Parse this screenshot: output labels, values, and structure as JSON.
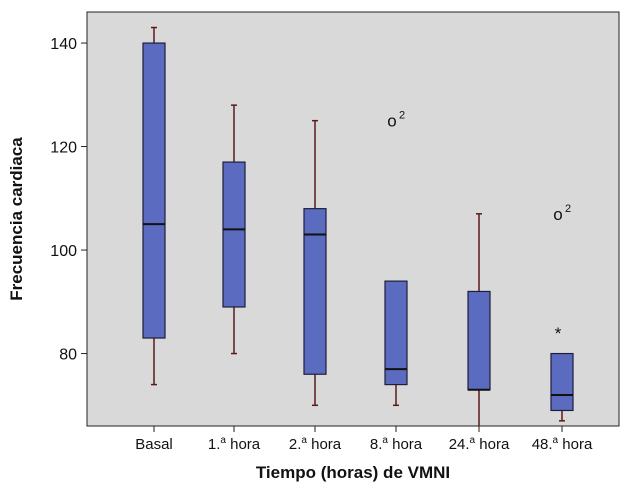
{
  "chart_data": {
    "type": "boxplot",
    "xlabel": "Tiempo (horas) de VMNI",
    "ylabel": "Frecuencia cardiaca",
    "ylim": [
      66,
      146
    ],
    "yticks": [
      80,
      100,
      120,
      140
    ],
    "grid": false,
    "colors": {
      "plot_bg": "#d9d9d9",
      "box_fill": "#5b6bbf",
      "box_stroke": "#1e1e3c",
      "whisker": "#5a1a1a"
    },
    "categories": [
      {
        "base": "Basal",
        "sup": ""
      },
      {
        "base": "1.",
        "sup": "a",
        "rest": " hora"
      },
      {
        "base": "2.",
        "sup": "a",
        "rest": " hora"
      },
      {
        "base": "8.",
        "sup": "a",
        "rest": " hora"
      },
      {
        "base": "24.",
        "sup": "a",
        "rest": " hora"
      },
      {
        "base": "48.",
        "sup": "a",
        "rest": " hora"
      }
    ],
    "boxes": [
      {
        "whisker_low": 74,
        "q1": 83,
        "median": 105,
        "q3": 140,
        "whisker_high": 143
      },
      {
        "whisker_low": 80,
        "q1": 89,
        "median": 104,
        "q3": 117,
        "whisker_high": 128
      },
      {
        "whisker_low": 70,
        "q1": 76,
        "median": 103,
        "q3": 108,
        "whisker_high": 125
      },
      {
        "whisker_low": 70,
        "q1": 74,
        "median": 77,
        "q3": 94,
        "whisker_high": 94
      },
      {
        "whisker_low": 66,
        "q1": 73,
        "median": 73,
        "q3": 92,
        "whisker_high": 107
      },
      {
        "whisker_low": 67,
        "q1": 69,
        "median": 72,
        "q3": 80,
        "whisker_high": 80
      }
    ],
    "outliers": [
      {
        "category_index": 3,
        "y": 125,
        "marker": "o",
        "label": "2"
      },
      {
        "category_index": 5,
        "y": 107,
        "marker": "o",
        "label": "2"
      },
      {
        "category_index": 5,
        "y": 84,
        "marker": "*",
        "label": ""
      }
    ]
  }
}
